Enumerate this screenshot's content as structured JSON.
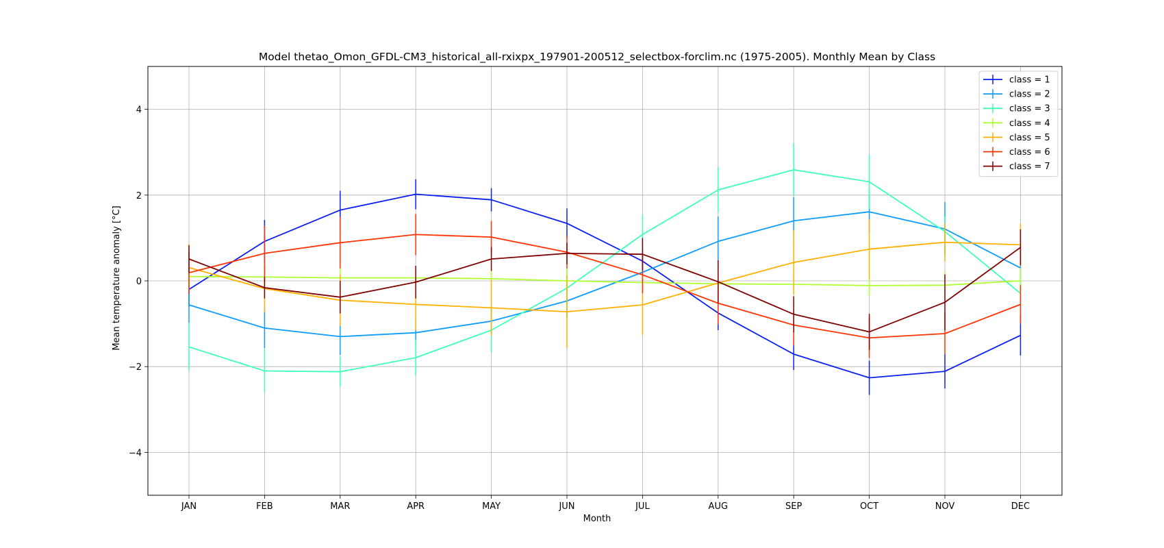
{
  "chart_data": {
    "type": "line",
    "title": "Model thetao_Omon_GFDL-CM3_historical_all-rxixpx_197901-200512_selectbox-forclim.nc (1975-2005). Monthly Mean by Class",
    "xlabel": "Month",
    "ylabel": "Mean temperature anomaly [°C]",
    "categories": [
      "JAN",
      "FEB",
      "MAR",
      "APR",
      "MAY",
      "JUN",
      "JUL",
      "AUG",
      "SEP",
      "OCT",
      "NOV",
      "DEC"
    ],
    "ylim": [
      -5,
      5
    ],
    "yticks": [
      -4,
      -2,
      0,
      2,
      4
    ],
    "grid": true,
    "legend_position": "top-right",
    "series": [
      {
        "name": "class = 1",
        "color": "#0a1ff0",
        "values": [
          -0.2,
          0.92,
          1.65,
          2.02,
          1.89,
          1.34,
          0.46,
          -0.75,
          -1.71,
          -2.26,
          -2.11,
          -1.27
        ],
        "err": [
          0.4,
          0.5,
          0.45,
          0.35,
          0.27,
          0.35,
          0.3,
          0.4,
          0.37,
          0.4,
          0.4,
          0.47
        ]
      },
      {
        "name": "class = 2",
        "color": "#0d9dff",
        "values": [
          -0.56,
          -1.1,
          -1.3,
          -1.21,
          -0.94,
          -0.47,
          0.2,
          0.92,
          1.4,
          1.61,
          1.21,
          0.3
        ],
        "err": [
          0.42,
          0.47,
          0.43,
          0.36,
          0.32,
          0.4,
          0.4,
          0.58,
          0.55,
          0.5,
          0.63,
          0.5
        ]
      },
      {
        "name": "class = 3",
        "color": "#3dffb5",
        "values": [
          -1.54,
          -2.1,
          -2.12,
          -1.79,
          -1.15,
          -0.17,
          1.08,
          2.12,
          2.59,
          2.31,
          1.15,
          -0.29
        ],
        "err": [
          0.55,
          0.5,
          0.35,
          0.42,
          0.52,
          0.5,
          0.46,
          0.53,
          0.62,
          0.63,
          0.35,
          0.5
        ]
      },
      {
        "name": "class = 4",
        "color": "#adff2f",
        "values": [
          0.1,
          0.09,
          0.07,
          0.07,
          0.05,
          0.0,
          -0.04,
          -0.07,
          -0.08,
          -0.11,
          -0.1,
          0.0
        ],
        "err": [
          0.22,
          0.22,
          0.22,
          0.2,
          0.2,
          0.32,
          0.2,
          0.2,
          0.22,
          0.25,
          0.3,
          0.3
        ]
      },
      {
        "name": "class = 5",
        "color": "#ffb000",
        "values": [
          0.31,
          -0.18,
          -0.45,
          -0.55,
          -0.63,
          -0.72,
          -0.56,
          -0.05,
          0.43,
          0.74,
          0.9,
          0.84
        ],
        "err": [
          0.55,
          0.55,
          0.6,
          0.6,
          0.65,
          0.85,
          0.7,
          0.5,
          0.75,
          0.7,
          0.45,
          0.5
        ]
      },
      {
        "name": "class = 6",
        "color": "#ff3300",
        "values": [
          0.19,
          0.64,
          0.89,
          1.08,
          1.02,
          0.67,
          0.14,
          -0.52,
          -1.03,
          -1.33,
          -1.23,
          -0.55
        ],
        "err": [
          0.5,
          0.65,
          0.6,
          0.48,
          0.38,
          0.38,
          0.43,
          0.5,
          0.48,
          0.47,
          0.48,
          0.45
        ]
      },
      {
        "name": "class = 7",
        "color": "#800000",
        "values": [
          0.51,
          -0.16,
          -0.38,
          -0.03,
          0.51,
          0.64,
          0.62,
          -0.02,
          -0.78,
          -1.19,
          -0.5,
          0.78
        ],
        "err": [
          0.32,
          0.25,
          0.38,
          0.38,
          0.28,
          0.25,
          0.38,
          0.5,
          0.42,
          0.42,
          0.65,
          0.42
        ]
      }
    ]
  }
}
